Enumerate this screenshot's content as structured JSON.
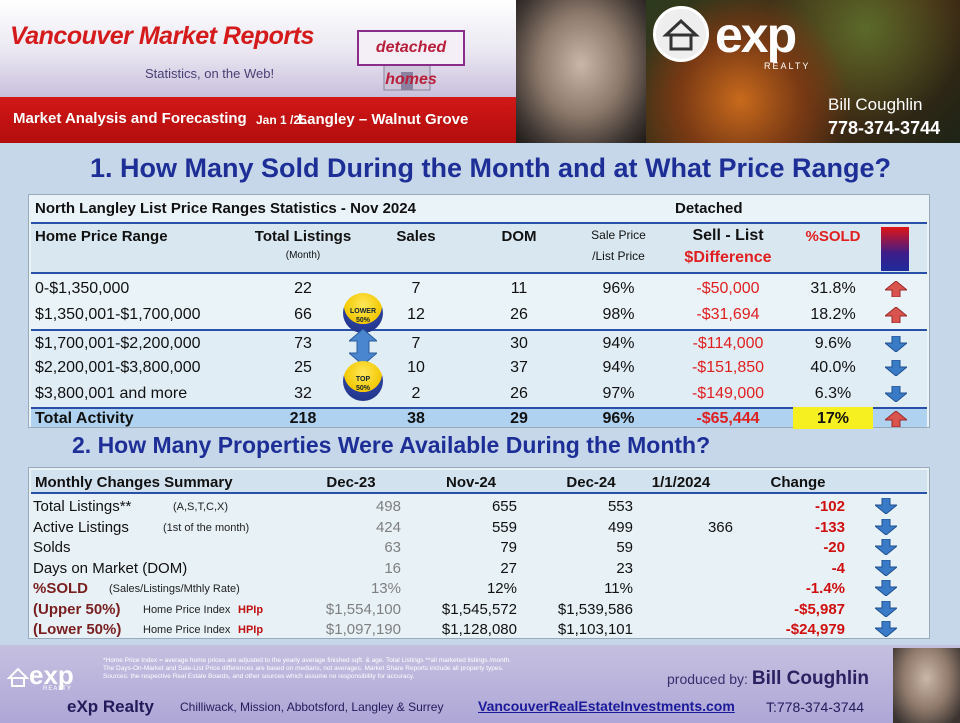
{
  "header": {
    "title": "Vancouver Market Reports",
    "subtitle": "Statistics, on the Web!",
    "badge": "detached homes",
    "section_label": "Market Analysis and Forecasting",
    "date": "Jan 1 /25",
    "location": "Langley – Walnut Grove",
    "brand": "exp",
    "brand_sub": "REALTY",
    "agent": "Bill Coughlin",
    "phone": "778-374-3744"
  },
  "heading1": "1. How Many Sold During the Month and at What Price Range?",
  "heading2": "2. How Many Properties Were Available During the Month?",
  "table1": {
    "title": "North Langley List Price Ranges Statistics - Nov  2024",
    "type": "Detached",
    "columns": {
      "range": "Home Price Range",
      "listings": "Total  Listings",
      "listings_sub": "(Month)",
      "sales": "Sales",
      "dom": "DOM",
      "ratio_a": "Sale Price",
      "ratio_b": "/List Price",
      "diff_a": "Sell - List",
      "diff_b": "$Difference",
      "sold": "%SOLD"
    },
    "rows": [
      {
        "range": "0-$1,350,000",
        "listings": "22",
        "sales": "7",
        "dom": "11",
        "ratio": "96%",
        "diff": "-$50,000",
        "sold": "31.8%",
        "trend": "up"
      },
      {
        "range": "$1,350,001-$1,700,000",
        "listings": "66",
        "sales": "12",
        "dom": "26",
        "ratio": "98%",
        "diff": "-$31,694",
        "sold": "18.2%",
        "trend": "up"
      },
      {
        "range": "$1,700,001-$2,200,000",
        "listings": "73",
        "sales": "7",
        "dom": "30",
        "ratio": "94%",
        "diff": "-$114,000",
        "sold": "9.6%",
        "trend": "down"
      },
      {
        "range": "$2,200,001-$3,800,000",
        "listings": "25",
        "sales": "10",
        "dom": "37",
        "ratio": "94%",
        "diff": "-$151,850",
        "sold": "40.0%",
        "trend": "down"
      },
      {
        "range": "$3,800,001 and more",
        "listings": "32",
        "sales": "2",
        "dom": "26",
        "ratio": "97%",
        "diff": "-$149,000",
        "sold": "6.3%",
        "trend": "down"
      }
    ],
    "total": {
      "range": "Total Activity",
      "listings": "218",
      "sales": "38",
      "dom": "29",
      "ratio": "96%",
      "diff": "-$65,444",
      "sold": "17%",
      "trend": "up"
    },
    "badge_lower_a": "LOWER",
    "badge_lower_b": "50%",
    "badge_top_a": "TOP",
    "badge_top_b": "50%"
  },
  "table2": {
    "columns": [
      "Monthly Changes Summary",
      "Dec-23",
      "Nov-24",
      "Dec-24",
      "1/1/2024",
      "Change"
    ],
    "rows": [
      {
        "label": "Total Listings**",
        "note": "(A,S,T,C,X)",
        "dec23": "498",
        "nov24": "655",
        "dec24": "553",
        "jan24": "",
        "change": "-102"
      },
      {
        "label": "Active Listings",
        "note": "(1st of the month)",
        "dec23": "424",
        "nov24": "559",
        "dec24": "499",
        "jan24": "366",
        "change": "-133"
      },
      {
        "label": "Solds",
        "note": "",
        "dec23": "63",
        "nov24": "79",
        "dec24": "59",
        "jan24": "",
        "change": "-20"
      },
      {
        "label": "Days on Market (DOM)",
        "note": "",
        "dec23": "16",
        "nov24": "27",
        "dec24": "23",
        "jan24": "",
        "change": "-4"
      },
      {
        "label": "%SOLD",
        "note": "(Sales/Listings/Mthly Rate)",
        "dec23": "13%",
        "nov24": "12%",
        "dec24": "11%",
        "jan24": "",
        "change": "-1.4%"
      },
      {
        "label": "(Upper 50%)",
        "note": "Home Price Index",
        "hpi": "HPIp",
        "dec23": "$1,554,100",
        "nov24": "$1,545,572",
        "dec24": "$1,539,586",
        "jan24": "",
        "change": "-$5,987"
      },
      {
        "label": "(Lower 50%)",
        "note": "Home Price Index",
        "hpi": "HPIp",
        "dec23": "$1,097,190",
        "nov24": "$1,128,080",
        "dec24": "$1,103,101",
        "jan24": "",
        "change": "-$24,979"
      }
    ]
  },
  "footer": {
    "note1": "*Home Price Index = average home prices are adjusted to the yearly average finished sqft. & age.  Total Listings **all marketed listings /month.",
    "note2": "The Days-On-Market and Sale-List Price differences are based on medians, not averages. Market Share Reports include all property types.",
    "note3": "Sources:  the respective Real Estate Boards, and other sources which assume no responsibility for accuracy.",
    "produced_label": "produced by:",
    "produced_name": "Bill Coughlin",
    "brand": "eXp Realty",
    "cities": "Chilliwack, Mission, Abbotsford, Langley & Surrey",
    "url": "VancouverRealEstateInvestments.com",
    "tel": "T:778-374-3744",
    "logo_word": "exp",
    "logo_sub": "REALTY"
  },
  "colors": {
    "accent": "#1d2f96",
    "negative": "#e02020",
    "header_red": "#c41212",
    "up_arrow": "#d9534f",
    "down_arrow": "#3a7bc8",
    "sold_highlight": "#f7f020"
  }
}
